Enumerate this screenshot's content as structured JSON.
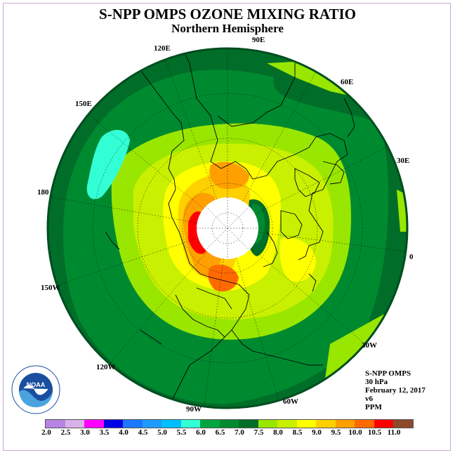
{
  "title": "S-NPP OMPS OZONE MIXING RATIO",
  "subtitle": "Northern Hemisphere",
  "longitude_labels": {
    "lon_90e": "90E",
    "lon_60e": "60E",
    "lon_30e": "30E",
    "lon_0": "0",
    "lon_30w": "30W",
    "lon_60w": "60W",
    "lon_90w": "90W",
    "lon_120w": "120W",
    "lon_150w": "150W",
    "lon_180": "180",
    "lon_150e": "150E",
    "lon_120e": "120E"
  },
  "info": {
    "instrument": "S-NPP OMPS",
    "level": "30 hPa",
    "date": "February 12, 2017",
    "version": "v6",
    "units": "PPM"
  },
  "logo": {
    "icon": "noaa-logo-icon",
    "text": "NOAA"
  },
  "colorbar": {
    "ticks": [
      "2.0",
      "2.5",
      "3.0",
      "3.5",
      "4.0",
      "4.5",
      "5.0",
      "5.5",
      "6.0",
      "6.5",
      "7.0",
      "7.5",
      "8.0",
      "8.5",
      "9.0",
      "9.5",
      "10.0",
      "10.5",
      "11.0"
    ],
    "colors": [
      "#b784e4",
      "#d8b0ea",
      "#ff00ff",
      "#0000e6",
      "#1e78ff",
      "#1e9bff",
      "#00bfff",
      "#33ffd5",
      "#00a640",
      "#008a30",
      "#006e28",
      "#99e600",
      "#c8f000",
      "#ffff00",
      "#ffd000",
      "#ffa000",
      "#ff6a00",
      "#ff0000",
      "#8c4a2a"
    ]
  },
  "colors": {
    "ocean_dark": "#006e28",
    "mid_green": "#008a30",
    "light_green": "#99e600",
    "yellow_green": "#c8f000",
    "yellow": "#ffff00",
    "orange": "#ffa000",
    "red": "#ff0000",
    "cyan": "#33ffd5"
  }
}
